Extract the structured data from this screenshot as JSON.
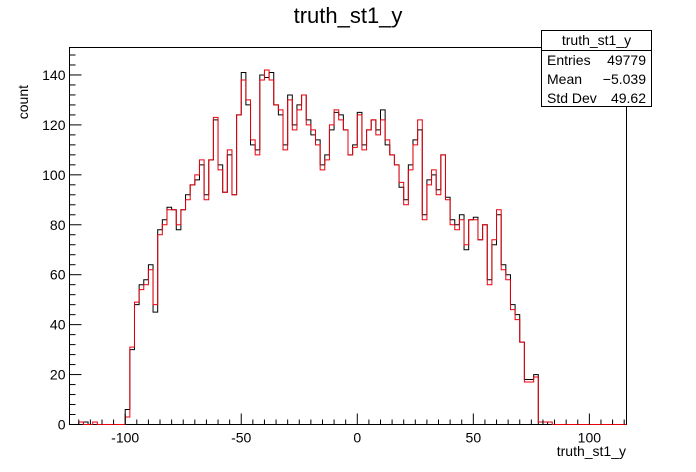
{
  "chart_data": {
    "type": "histogram",
    "title": "truth_st1_y",
    "xlabel": "truth_st1_y",
    "ylabel": "count",
    "xlim": [
      -124,
      116
    ],
    "ylim": [
      0,
      151
    ],
    "bin_width": 2,
    "x_ticks": [
      -100,
      -50,
      0,
      50,
      100
    ],
    "y_ticks": [
      0,
      20,
      40,
      60,
      80,
      100,
      120,
      140
    ],
    "stats": {
      "name": "truth_st1_y",
      "rows": [
        {
          "label": "Entries",
          "value": "49779"
        },
        {
          "label": "Mean",
          "value": "−5.039"
        },
        {
          "label": "Std Dev",
          "value": "49.62"
        }
      ]
    },
    "series": [
      {
        "color": "#000000",
        "values": [
          0,
          0,
          0,
          1,
          0,
          0,
          0,
          0,
          0,
          0,
          0,
          0,
          6,
          30,
          48,
          56,
          58,
          64,
          45,
          78,
          82,
          87,
          86,
          78,
          86,
          92,
          96,
          98,
          104,
          92,
          106,
          122,
          104,
          93,
          108,
          92,
          124,
          141,
          128,
          112,
          110,
          140,
          139,
          141,
          128,
          124,
          112,
          132,
          120,
          128,
          132,
          122,
          116,
          114,
          104,
          108,
          118,
          125,
          124,
          118,
          108,
          112,
          125,
          112,
          118,
          122,
          118,
          126,
          112,
          108,
          104,
          95,
          90,
          104,
          114,
          118,
          84,
          98,
          100,
          94,
          108,
          91,
          82,
          80,
          84,
          70,
          82,
          83,
          74,
          80,
          58,
          72,
          84,
          64,
          60,
          48,
          44,
          33,
          18,
          18,
          20,
          0,
          1,
          0,
          0,
          0,
          0,
          0,
          0,
          0
        ]
      },
      {
        "color": "#e8000b",
        "values": [
          0,
          0,
          1,
          0,
          0,
          1,
          0,
          0,
          0,
          0,
          0,
          0,
          3,
          31,
          49,
          54,
          56,
          62,
          48,
          76,
          80,
          86,
          86,
          80,
          86,
          90,
          96,
          100,
          106,
          90,
          106,
          123,
          102,
          93,
          110,
          92,
          124,
          138,
          130,
          114,
          108,
          138,
          142,
          138,
          128,
          126,
          110,
          130,
          118,
          126,
          132,
          120,
          118,
          112,
          102,
          106,
          120,
          126,
          122,
          118,
          108,
          111,
          124,
          110,
          118,
          122,
          116,
          122,
          114,
          108,
          104,
          97,
          88,
          102,
          112,
          122,
          82,
          96,
          102,
          92,
          108,
          90,
          80,
          78,
          82,
          72,
          82,
          82,
          74,
          80,
          56,
          74,
          86,
          62,
          58,
          46,
          42,
          33,
          17,
          17,
          19,
          1,
          1,
          1,
          0,
          0,
          0,
          0,
          0,
          0
        ]
      }
    ]
  }
}
